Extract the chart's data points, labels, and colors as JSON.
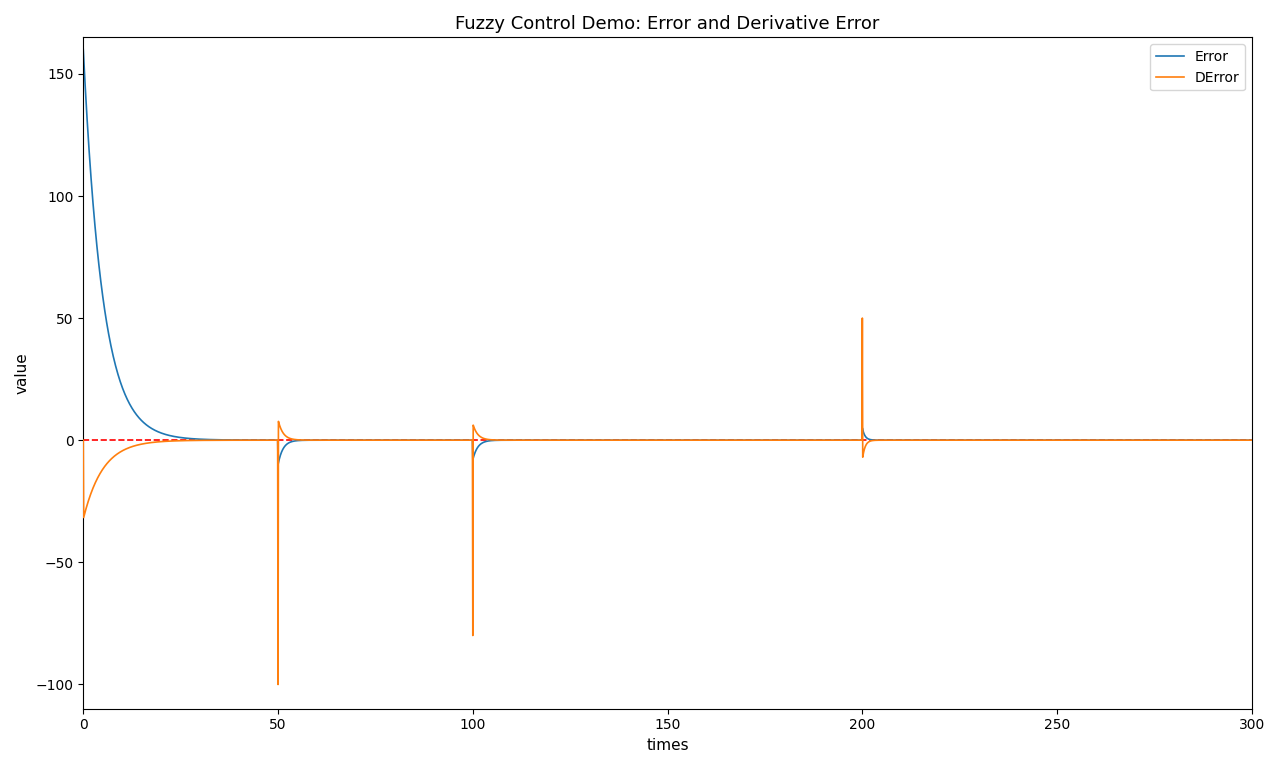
{
  "title": "Fuzzy Control Demo: Error and Derivative Error",
  "xlabel": "times",
  "ylabel": "value",
  "xlim": [
    0,
    300
  ],
  "ylim": [
    -110,
    165
  ],
  "error_color": "#1f77b4",
  "derror_color": "#ff7f0e",
  "ref_color": "red",
  "error_label": "Error",
  "derror_label": "DError",
  "legend_loc": "upper right",
  "background_color": "white"
}
